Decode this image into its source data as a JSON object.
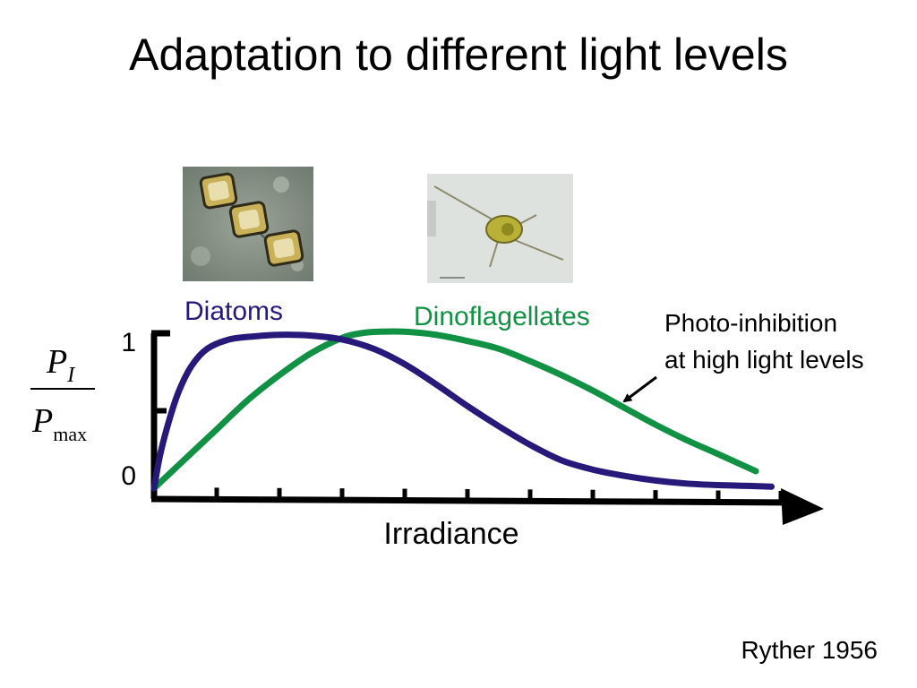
{
  "slide": {
    "title": "Adaptation to different light levels",
    "citation": "Ryther 1956"
  },
  "photos": [
    {
      "name": "diatoms-micrograph",
      "depicts": "diatoms"
    },
    {
      "name": "dinoflagellate-micrograph",
      "depicts": "dinoflagellate"
    }
  ],
  "chart_data": {
    "type": "line",
    "title": "",
    "xlabel": "Irradiance",
    "ylabel": {
      "numerator": "P",
      "numerator_sub": "I",
      "denominator": "P",
      "denominator_sub": "max"
    },
    "xlim": [
      0,
      10
    ],
    "ylim": [
      0,
      1
    ],
    "x_ticks": [
      1,
      2,
      3,
      4,
      5,
      6,
      7,
      8,
      9,
      10
    ],
    "y_tick_labels": [
      {
        "value": 0,
        "label": "0"
      },
      {
        "value": 1,
        "label": "1"
      }
    ],
    "y_mid_tick": 0.5,
    "grid": false,
    "series": [
      {
        "name": "Diatoms",
        "color": "#26197a",
        "x": [
          0,
          0.1,
          0.25,
          0.4,
          0.6,
          0.85,
          1.2,
          1.6,
          2.0,
          2.5,
          3.0,
          3.5,
          4.0,
          4.5,
          5.0,
          5.5,
          6.0,
          6.5,
          7.0,
          7.5,
          8.0,
          8.5,
          9.0,
          9.5,
          9.85
        ],
        "y": [
          0.0,
          0.22,
          0.45,
          0.63,
          0.79,
          0.9,
          0.96,
          0.98,
          0.99,
          0.985,
          0.96,
          0.9,
          0.8,
          0.67,
          0.53,
          0.4,
          0.28,
          0.18,
          0.12,
          0.08,
          0.05,
          0.03,
          0.02,
          0.015,
          0.01
        ]
      },
      {
        "name": "Dinoflagellates",
        "color": "#119143",
        "x": [
          0,
          0.5,
          1.0,
          1.5,
          2.0,
          2.5,
          3.0,
          3.3,
          3.6,
          4.0,
          4.5,
          5.0,
          5.5,
          6.0,
          6.5,
          7.0,
          7.5,
          8.0,
          8.5,
          9.0,
          9.6
        ],
        "y": [
          0.0,
          0.19,
          0.38,
          0.57,
          0.73,
          0.87,
          0.97,
          1.0,
          1.01,
          1.01,
          0.99,
          0.95,
          0.9,
          0.82,
          0.73,
          0.63,
          0.52,
          0.41,
          0.31,
          0.22,
          0.11
        ]
      }
    ],
    "annotation": {
      "lines": [
        "Photo-inhibition",
        "at high light levels"
      ],
      "points_to_series": "Dinoflagellates"
    }
  }
}
